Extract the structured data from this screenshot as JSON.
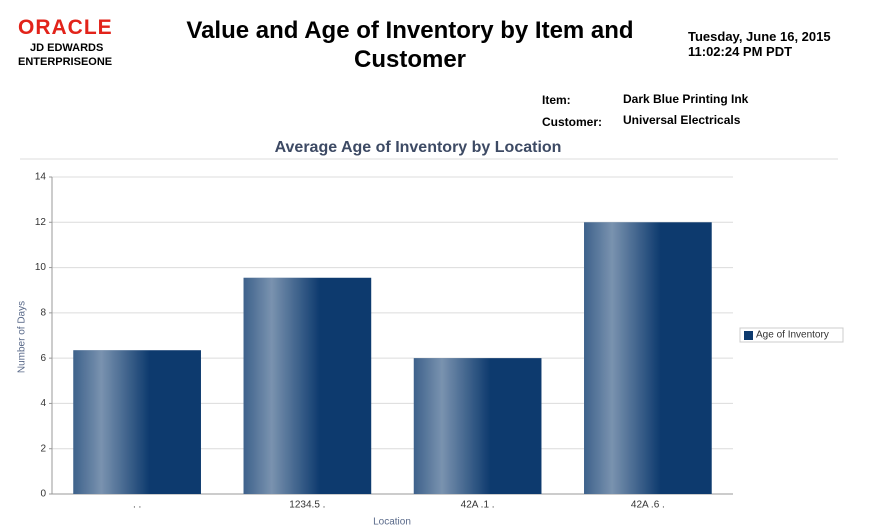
{
  "header": {
    "logo": [
      "ORACLE",
      "JD EDWARDS",
      "ENTERPRISEONE"
    ],
    "title": "Value and Age of Inventory by Item and Customer",
    "date": "Tuesday, June 16, 2015",
    "time": "11:02:24 PM PDT",
    "fields": [
      {
        "label": "Item:",
        "value": "Dark Blue Printing Ink"
      },
      {
        "label": "Customer:",
        "value": "Universal Electricals"
      }
    ]
  },
  "chart_data": {
    "type": "bar",
    "title": "Average Age of Inventory by Location",
    "x_label": "Location",
    "y_label": "Number of Days",
    "categories": [
      ". .",
      "1234.5 .",
      "42A .1 .",
      "42A .6 ."
    ],
    "series": [
      {
        "name": "Age of Inventory",
        "color": "#0d3a6e",
        "values": [
          6.35,
          9.55,
          6.0,
          12.0
        ]
      }
    ],
    "ylim": [
      0,
      14
    ],
    "yticks": [
      0,
      2,
      4,
      6,
      8,
      10,
      12,
      14
    ],
    "grid": true,
    "legend": "right"
  }
}
